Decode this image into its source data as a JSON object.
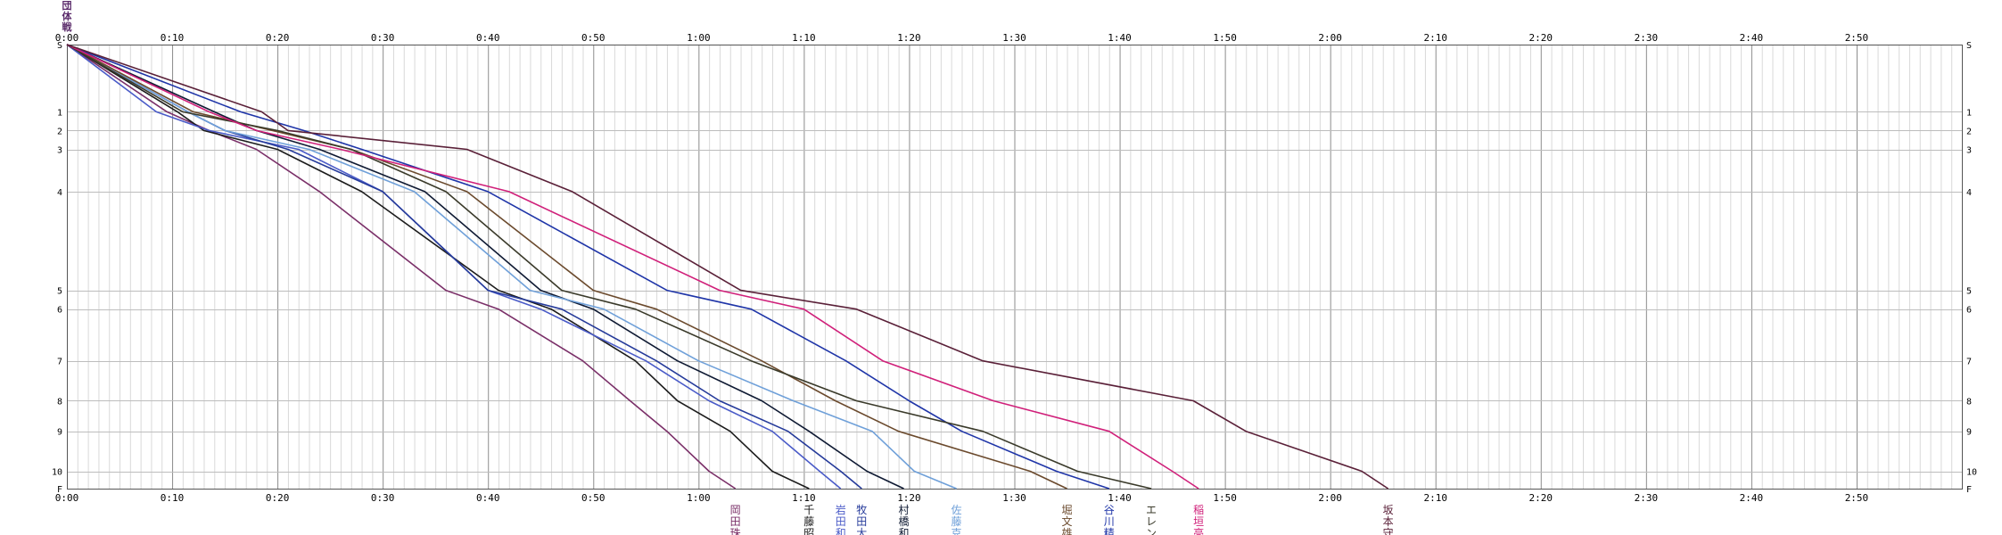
{
  "start_label": "団体戦",
  "chart_data": {
    "type": "line",
    "title": "",
    "xlabel": "",
    "ylabel": "",
    "x_unit": "minutes",
    "xlim": [
      0,
      180
    ],
    "x_ticks": [
      "0:00",
      "0:10",
      "0:20",
      "0:30",
      "0:40",
      "0:50",
      "1:00",
      "1:10",
      "1:20",
      "1:30",
      "1:40",
      "1:50",
      "2:00",
      "2:10",
      "2:20",
      "2:30",
      "2:40",
      "2:50"
    ],
    "grid": true,
    "controls": [
      "S",
      "1",
      "2",
      "3",
      "4",
      "5",
      "6",
      "7",
      "8",
      "9",
      "10",
      "F"
    ],
    "control_dist": [
      0,
      143,
      183,
      223,
      313,
      523,
      563,
      673,
      758,
      823,
      908,
      945
    ],
    "series": [
      {
        "name": "岡田珠",
        "color": "#7a2f68",
        "splits": [
          0,
          9.5,
          13.5,
          18,
          24,
          36,
          41,
          49,
          53.5,
          57,
          61,
          63.5
        ]
      },
      {
        "name": "千藤昭",
        "color": "#1c1c1c",
        "splits": [
          0,
          10.5,
          13,
          20,
          28,
          41,
          46,
          54,
          58,
          63,
          67,
          70.5
        ]
      },
      {
        "name": "岩田和",
        "color": "#4a5bc8",
        "splits": [
          0,
          8.5,
          13.5,
          22,
          30,
          40,
          45,
          55,
          61,
          67,
          71.5,
          73.5
        ]
      },
      {
        "name": "牧田大",
        "color": "#253a9a",
        "splits": [
          0,
          11.5,
          15,
          21,
          30,
          40,
          47,
          56,
          62,
          68.5,
          73.5,
          75.5
        ]
      },
      {
        "name": "村橋和",
        "color": "#0f1a33",
        "splits": [
          0,
          14,
          18,
          24,
          34,
          45,
          50,
          58,
          66,
          70.5,
          76,
          79.5
        ]
      },
      {
        "name": "佐藤克",
        "color": "#6fa0d9",
        "splits": [
          0,
          11.5,
          15,
          23,
          33,
          44,
          51,
          60,
          69,
          76.5,
          80.5,
          84.5
        ]
      },
      {
        "name": "堀文雄",
        "color": "#6b4a2d",
        "splits": [
          0,
          12,
          19.5,
          27,
          38,
          50,
          56,
          66,
          73,
          79,
          91.5,
          95
        ]
      },
      {
        "name": "谷川精",
        "color": "#1f35a8",
        "splits": [
          0,
          16.5,
          22.5,
          28,
          40,
          57,
          65,
          74,
          80,
          85,
          94,
          99
        ]
      },
      {
        "name": "エレン",
        "color": "#3a3a2a",
        "splits": [
          0,
          11,
          20,
          27,
          36,
          47,
          54,
          65,
          75,
          87,
          96,
          103
        ]
      },
      {
        "name": "稲垣亮",
        "color": "#d0207a",
        "splits": [
          0,
          13.5,
          18,
          26,
          42,
          62,
          70,
          77.5,
          88,
          99,
          105,
          107.5
        ]
      },
      {
        "name": "坂本守",
        "color": "#5a2038",
        "splits": [
          0,
          18.5,
          21,
          38,
          48,
          64,
          75,
          87,
          107,
          112,
          123,
          125.5
        ]
      }
    ]
  }
}
